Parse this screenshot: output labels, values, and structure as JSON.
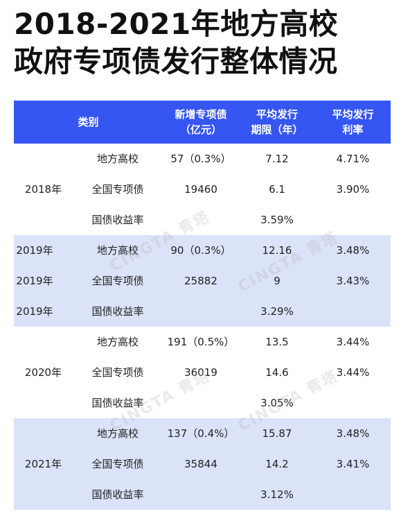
{
  "title": {
    "line1": "2018-2021年地方高校",
    "line2": "政府专项债发行整体情况"
  },
  "table": {
    "headers": {
      "category": "类别",
      "new_bonds_l1": "新增专项债",
      "new_bonds_l2": "（亿元）",
      "term_l1": "平均发行",
      "term_l2": "期限（年）",
      "rate_l1": "平均发行",
      "rate_l2": "利率"
    },
    "groups": [
      {
        "year": "2018年",
        "rows": [
          {
            "category": "地方高校",
            "new_bonds": "57（0.3%）",
            "term": "7.12",
            "rate": "4.71%"
          },
          {
            "category": "全国专项债",
            "new_bonds": "19460",
            "term": "6.1",
            "rate": "3.90%"
          },
          {
            "category": "国债收益率",
            "yield": "3.59%"
          }
        ]
      },
      {
        "year_rows": [
          "2019年",
          "2019年",
          "2019年"
        ],
        "rows": [
          {
            "category": "地方高校",
            "new_bonds": "90（0.3%）",
            "term": "12.16",
            "rate": "3.48%"
          },
          {
            "category": "全国专项债",
            "new_bonds": "25882",
            "term": "9",
            "rate": "3.43%"
          },
          {
            "category": "国债收益率",
            "yield": "3.29%"
          }
        ]
      },
      {
        "year": "2020年",
        "rows": [
          {
            "category": "地方高校",
            "new_bonds": "191（0.5%）",
            "term": "13.5",
            "rate": "3.44%"
          },
          {
            "category": "全国专项债",
            "new_bonds": "36019",
            "term": "14.6",
            "rate": "3.44%"
          },
          {
            "category": "国债收益率",
            "yield": "3.05%"
          }
        ]
      },
      {
        "year": "2021年",
        "rows": [
          {
            "category": "地方高校",
            "new_bonds": "137（0.4%）",
            "term": "15.87",
            "rate": "3.48%"
          },
          {
            "category": "全国专项债",
            "new_bonds": "35844",
            "term": "14.2",
            "rate": "3.41%"
          },
          {
            "category": "国债收益率",
            "yield": "3.12%"
          }
        ]
      }
    ]
  },
  "watermark": {
    "text": "CINGTA 青塔"
  },
  "colors": {
    "header_bg": "#3556f2",
    "shaded_row_bg": "#dbe3f9"
  }
}
